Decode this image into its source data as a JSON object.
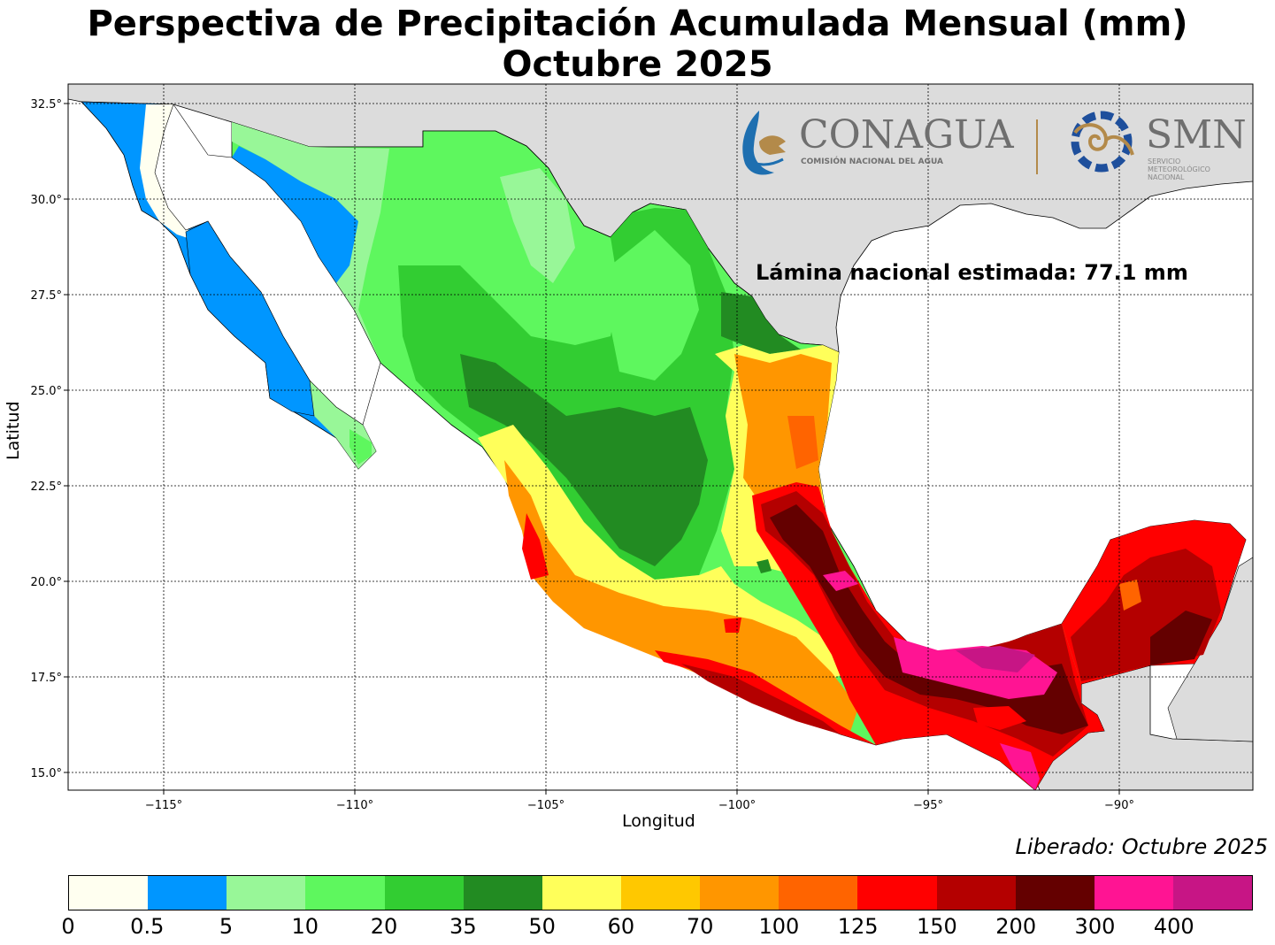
{
  "title": {
    "line1": "Perspectiva de Precipitación Acumulada Mensual (mm)",
    "line2": "Octubre 2025"
  },
  "annotation": "Lámina nacional estimada: 77.1 mm",
  "released": "Liberado: Octubre 2025",
  "axes": {
    "xlabel": "Longitud",
    "ylabel": "Latitud",
    "x_ticks": [
      "−115°",
      "−110°",
      "−105°",
      "−100°",
      "−95°",
      "−90°"
    ],
    "y_ticks": [
      "32.5°",
      "30.0°",
      "27.5°",
      "25.0°",
      "22.5°",
      "20.0°",
      "17.5°",
      "15.0°"
    ],
    "xlim": [
      -117.5,
      -86.5
    ],
    "ylim": [
      14.5,
      33
    ]
  },
  "logos": {
    "conagua": {
      "name": "CONAGUA",
      "subtitle": "COMISIÓN NACIONAL DEL AGUA"
    },
    "smn": {
      "name": "SMN",
      "subtitle": [
        "SERVICIO",
        "METEOROLÓGICO",
        "NACIONAL"
      ]
    }
  },
  "colorbar": {
    "ticks": [
      "0",
      "0.5",
      "5",
      "10",
      "20",
      "35",
      "50",
      "60",
      "70",
      "100",
      "125",
      "150",
      "200",
      "300",
      "400"
    ],
    "colors": [
      "#fffff0",
      "#0096ff",
      "#98f798",
      "#5ef75e",
      "#32cd32",
      "#228b22",
      "#ffff5a",
      "#ffc800",
      "#ff9600",
      "#ff6400",
      "#ff0000",
      "#b40000",
      "#640000",
      "#ff1493",
      "#c71585"
    ]
  },
  "colors": {
    "land_outside": "#dcdcdc",
    "ocean": "#ffffff"
  }
}
